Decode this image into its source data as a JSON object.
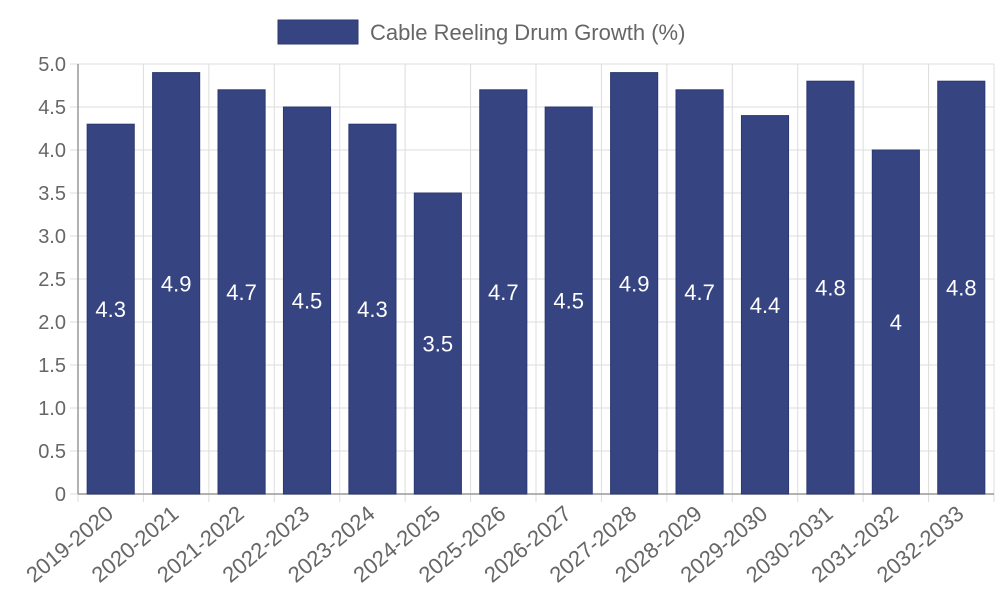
{
  "chart_data": {
    "type": "bar",
    "title": "",
    "xlabel": "",
    "ylabel": "",
    "legend": {
      "label": "Cable Reeling Drum Growth (%)",
      "position": "top"
    },
    "categories": [
      "2019-2020",
      "2020-2021",
      "2021-2022",
      "2022-2023",
      "2023-2024",
      "2024-2025",
      "2025-2026",
      "2026-2027",
      "2027-2028",
      "2028-2029",
      "2029-2030",
      "2030-2031",
      "2031-2032",
      "2032-2033"
    ],
    "series": [
      {
        "name": "Cable Reeling Drum Growth (%)",
        "values": [
          4.3,
          4.9,
          4.7,
          4.5,
          4.3,
          3.5,
          4.7,
          4.5,
          4.9,
          4.7,
          4.4,
          4.8,
          4,
          4.8
        ]
      }
    ],
    "data_labels": [
      "4.3",
      "4.9",
      "4.7",
      "4.5",
      "4.3",
      "3.5",
      "4.7",
      "4.5",
      "4.9",
      "4.7",
      "4.4",
      "4.8",
      "4",
      "4.8"
    ],
    "y_ticks": [
      "0",
      "0.5",
      "1.0",
      "1.5",
      "2.0",
      "2.5",
      "3.0",
      "3.5",
      "4.0",
      "4.5",
      "5.0"
    ],
    "ylim": [
      0,
      5
    ],
    "grid": true,
    "colors": {
      "bar": "#364481",
      "bar_border": "#2c3870",
      "grid": "#dddddd",
      "axis": "#999999",
      "text": "#666666"
    }
  }
}
